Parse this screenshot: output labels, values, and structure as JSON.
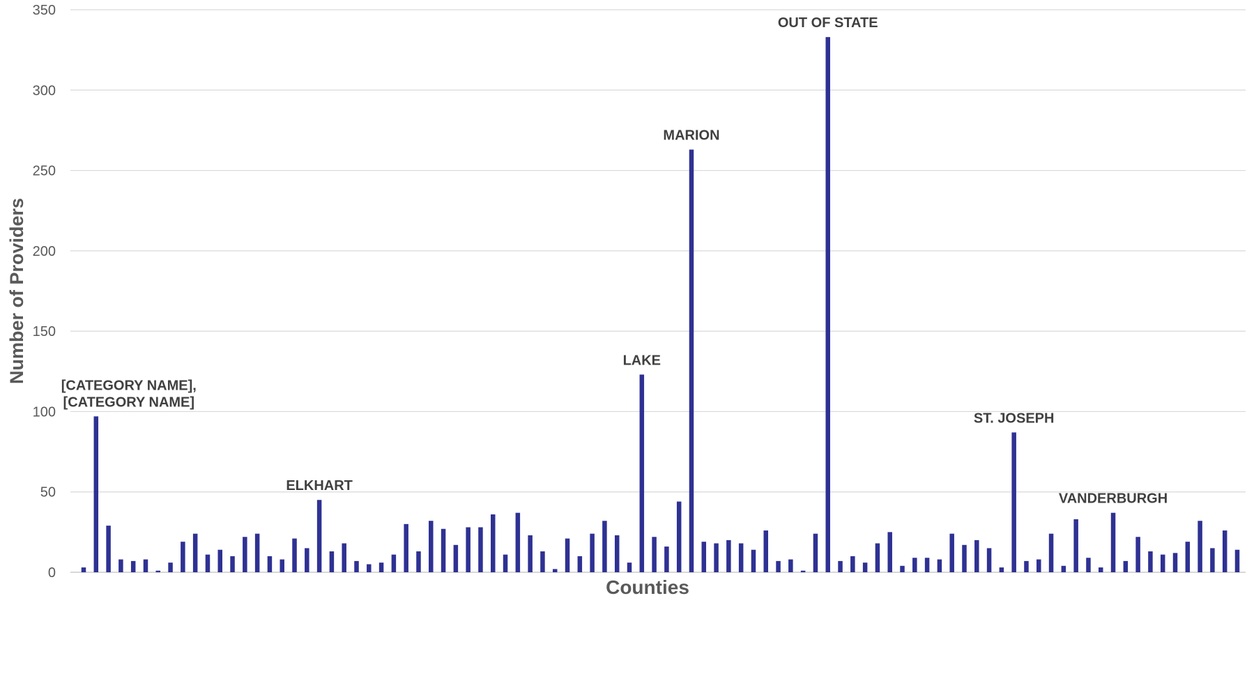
{
  "chart_data": {
    "type": "bar",
    "ylabel": "Number of Providers",
    "xlabel": "Counties",
    "ylim": [
      0,
      350
    ],
    "yticks": [
      0,
      50,
      100,
      150,
      200,
      250,
      300,
      350
    ],
    "grid": true,
    "legend": "none",
    "bar_color": "#2E3192",
    "values": [
      3,
      97,
      29,
      8,
      7,
      8,
      1,
      6,
      19,
      24,
      11,
      14,
      10,
      22,
      24,
      10,
      8,
      21,
      15,
      45,
      13,
      18,
      7,
      5,
      6,
      11,
      30,
      13,
      32,
      27,
      17,
      28,
      28,
      36,
      11,
      37,
      23,
      13,
      2,
      21,
      10,
      24,
      32,
      23,
      6,
      123,
      22,
      16,
      44,
      263,
      19,
      18,
      20,
      18,
      14,
      26,
      7,
      8,
      1,
      24,
      333,
      7,
      10,
      6,
      18,
      25,
      4,
      9,
      9,
      8,
      24,
      17,
      20,
      15,
      3,
      87,
      7,
      8,
      24,
      4,
      33,
      9,
      3,
      37,
      7,
      22,
      13,
      11,
      12,
      19,
      32,
      15,
      26,
      14
    ],
    "annotations": [
      {
        "index": 1,
        "lines": [
          "[CATEGORY  NAME],",
          "[CATEGORY  NAME]"
        ]
      },
      {
        "index": 19,
        "lines": [
          "ELKHART"
        ]
      },
      {
        "index": 45,
        "lines": [
          "LAKE"
        ]
      },
      {
        "index": 49,
        "lines": [
          "MARION"
        ]
      },
      {
        "index": 60,
        "lines": [
          "OUT  OF STATE"
        ]
      },
      {
        "index": 75,
        "lines": [
          "ST. JOSEPH"
        ]
      },
      {
        "index": 83,
        "lines": [
          "VANDERBURGH"
        ]
      }
    ]
  }
}
